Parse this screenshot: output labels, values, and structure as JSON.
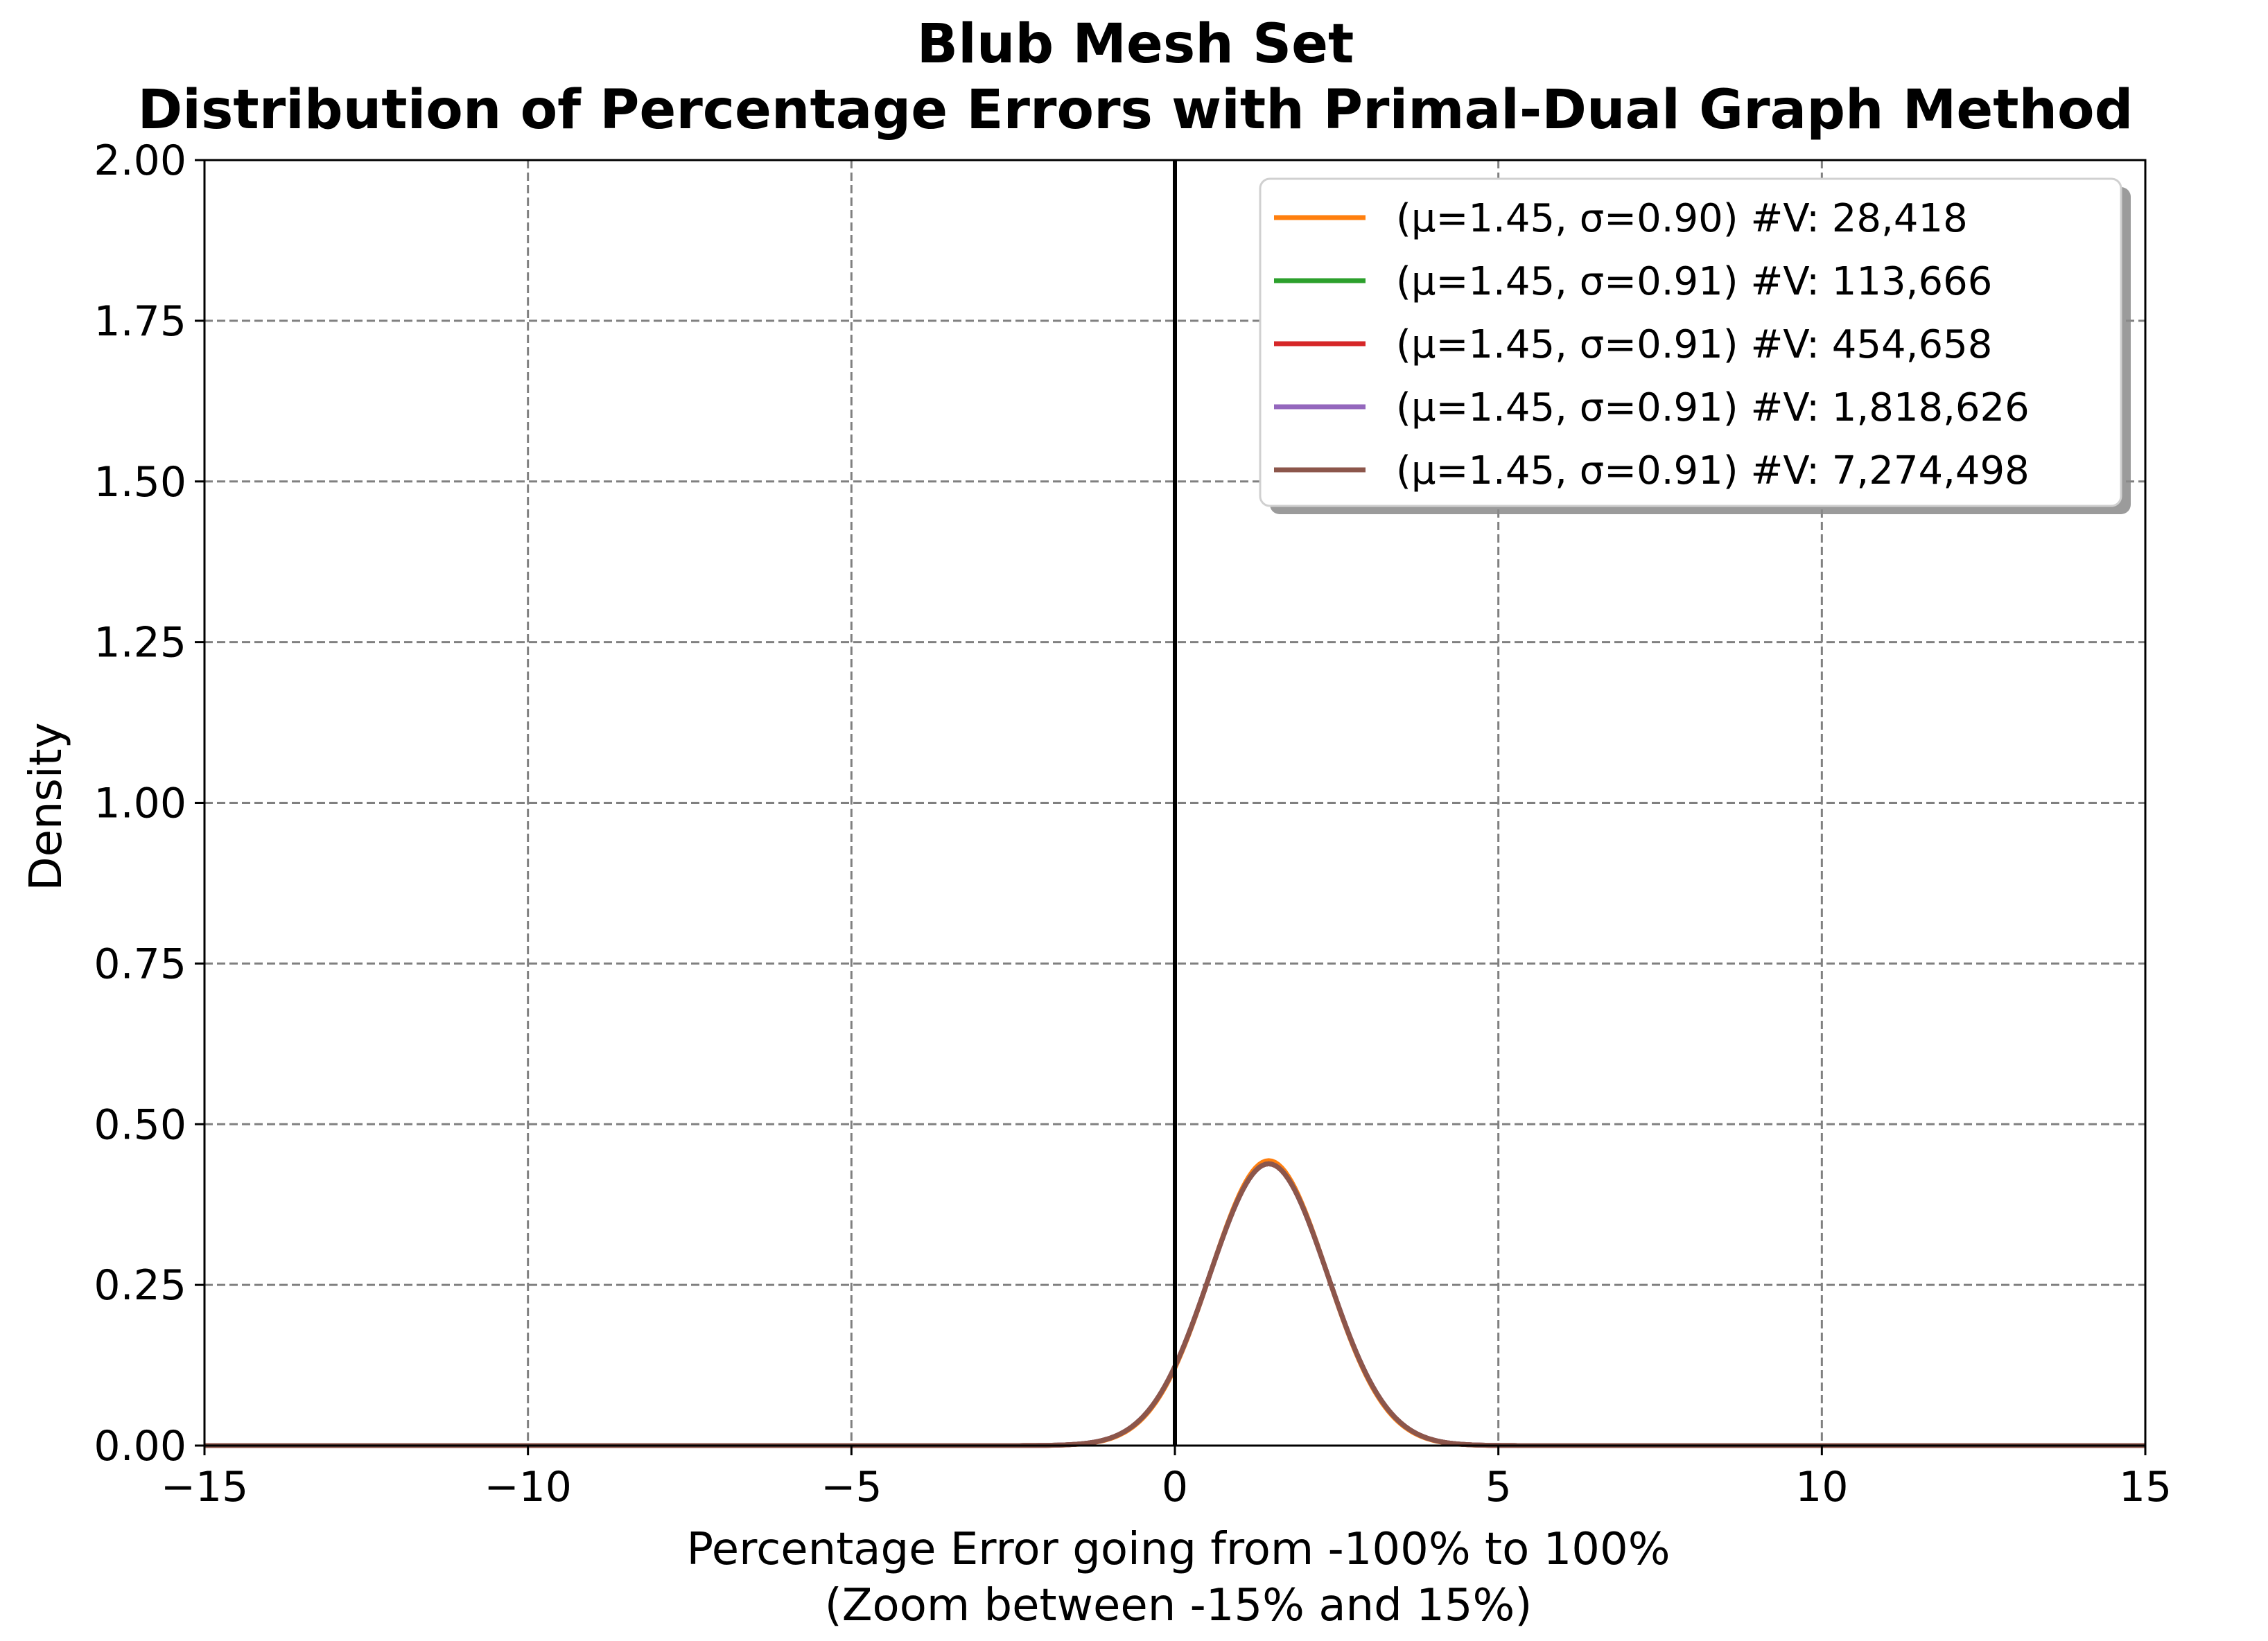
{
  "chart_data": {
    "type": "line",
    "title": [
      "Blub Mesh Set",
      "Distribution of Percentage Errors with Primal-Dual Graph Method"
    ],
    "xlabel": [
      "Percentage Error going from -100% to 100%",
      "(Zoom between -15% and 15%)"
    ],
    "ylabel": "Density",
    "xlim": [
      -15,
      15
    ],
    "ylim": [
      0,
      2.0
    ],
    "xticks": [
      -15,
      -10,
      -5,
      0,
      5,
      10,
      15
    ],
    "xtick_labels": [
      "−15",
      "−10",
      "−5",
      "0",
      "5",
      "10",
      "15"
    ],
    "yticks": [
      0,
      0.25,
      0.5,
      0.75,
      1.0,
      1.25,
      1.5,
      1.75,
      2.0
    ],
    "ytick_labels": [
      "0.00",
      "0.25",
      "0.50",
      "0.75",
      "1.00",
      "1.25",
      "1.50",
      "1.75",
      "2.00"
    ],
    "grid": true,
    "legend_position": "upper-right",
    "vertical_reference_line": {
      "x": 0,
      "color": "#000000"
    },
    "series": [
      {
        "name": "(μ=1.45, σ=0.90) #V: 28,418",
        "mean": 1.45,
        "std": 0.9,
        "color": "#ff7f0e"
      },
      {
        "name": "(μ=1.45, σ=0.91) #V: 113,666",
        "mean": 1.45,
        "std": 0.91,
        "color": "#2ca02c"
      },
      {
        "name": "(μ=1.45, σ=0.91) #V: 454,658",
        "mean": 1.45,
        "std": 0.91,
        "color": "#d62728"
      },
      {
        "name": "(μ=1.45, σ=0.91) #V: 1,818,626",
        "mean": 1.45,
        "std": 0.91,
        "color": "#9467bd"
      },
      {
        "name": "(μ=1.45, σ=0.91) #V: 7,274,498",
        "mean": 1.45,
        "std": 0.91,
        "color": "#8c564b"
      }
    ]
  }
}
